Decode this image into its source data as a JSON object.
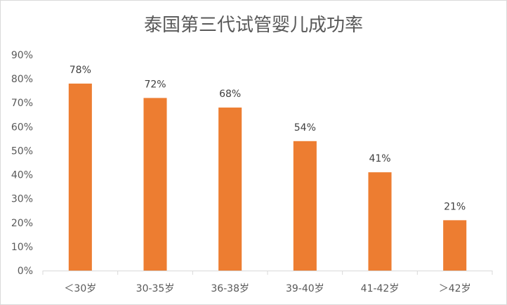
{
  "chart_data": {
    "type": "bar",
    "title": "泰国第三代试管婴儿成功率",
    "categories": [
      "＜30岁",
      "30-35岁",
      "36-38岁",
      "39-40岁",
      "41-42岁",
      "＞42岁"
    ],
    "values": [
      78,
      72,
      68,
      54,
      41,
      21
    ],
    "data_labels": [
      "78%",
      "72%",
      "68%",
      "54%",
      "41%",
      "21%"
    ],
    "y_ticks": [
      "0%",
      "10%",
      "20%",
      "30%",
      "40%",
      "50%",
      "60%",
      "70%",
      "80%",
      "90%"
    ],
    "ylim": [
      0,
      90
    ],
    "xlabel": "",
    "ylabel": "",
    "grid": false,
    "legend": "none",
    "bar_color": "#ED7D31",
    "axis_color": "#d9d9d9",
    "text_color": "#595959"
  }
}
